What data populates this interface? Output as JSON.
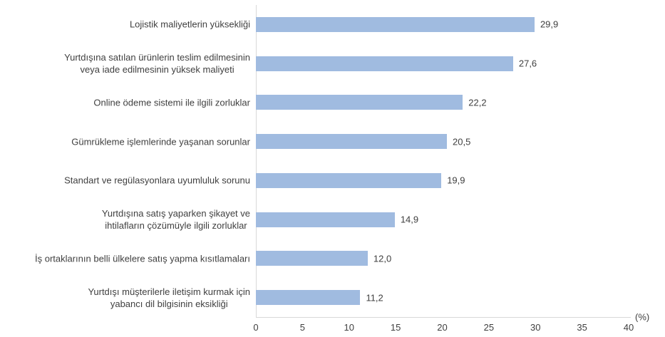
{
  "chart_data": {
    "type": "bar",
    "orientation": "horizontal",
    "title": "",
    "categories": [
      "Lojistik maliyetlerin yüksekliği",
      "Yurtdışına satılan ürünlerin teslim edilmesinin\nveya iade edilmesinin yüksek maliyeti",
      "Online ödeme sistemi ile ilgili zorluklar",
      "Gümrükleme işlemlerinde yaşanan sorunlar",
      "Standart ve regülasyonlara uyumluluk sorunu",
      "Yurtdışına satış yaparken şikayet ve\nihtilafların çözümüyle ilgili zorluklar",
      "İş ortaklarının belli ülkelere satış yapma kısıtlamaları",
      "Yurtdışı müşterilerle iletişim kurmak için\nyabancı dil bilgisinin eksikliği"
    ],
    "values": [
      29.9,
      27.6,
      22.2,
      20.5,
      19.9,
      14.9,
      12.0,
      11.2
    ],
    "value_labels": [
      "29,9",
      "27,6",
      "22,2",
      "20,5",
      "19,9",
      "14,9",
      "12,0",
      "11,2"
    ],
    "xlabel": "(%)",
    "ylabel": "",
    "xlim": [
      0,
      40
    ],
    "xticks": [
      0,
      5,
      10,
      15,
      20,
      25,
      30,
      35,
      40
    ],
    "xtick_labels": [
      "0",
      "5",
      "10",
      "15",
      "20",
      "25",
      "30",
      "35",
      "40"
    ],
    "grid": false,
    "legend": "none",
    "colors": {
      "bar": "#A0BBE0",
      "axis_line": "#D9D9D9",
      "text": "#3F3F3F",
      "background": "#FFFFFF"
    }
  }
}
